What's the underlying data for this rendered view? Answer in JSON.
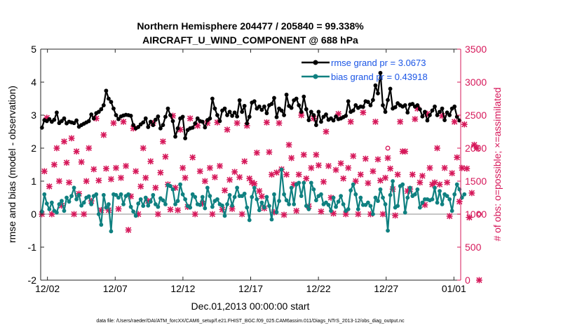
{
  "chart_data": {
    "type": "line",
    "title": "Northern Hemisphere 204477 / 205840 = 99.338%",
    "subtitle": "AIRCRAFT_U_WIND_COMPONENT @ 688 hPa",
    "xlabel": "Dec.01,2013 00:00:00 start",
    "ylabel_left": "rmse and bias (model - observation)",
    "ylabel_right": "# of obs: o=possible; ×=assimilated",
    "footnote": "data file: /Users/raeder/DAI/ATM_forcXX/CAM6_setup/f.e21.FHIST_BGC.f09_025.CAM6assim.011/Diags_NTrS_2013-12/obs_diag_output.nc",
    "xlim": [
      0.5,
      31.5
    ],
    "x_ticks": [
      1,
      6,
      11,
      16,
      21,
      26,
      31
    ],
    "x_tick_labels": [
      "12/02",
      "12/07",
      "12/12",
      "12/17",
      "12/22",
      "12/27",
      "01/01"
    ],
    "ylim_left": [
      -2,
      5
    ],
    "y_ticks_left": [
      -2,
      -1,
      0,
      1,
      2,
      3,
      4,
      5
    ],
    "y_tick_labels_left": [
      "-2",
      "-1",
      "0",
      "1",
      "2",
      "3",
      "4",
      "5"
    ],
    "ylim_right": [
      0,
      3500
    ],
    "y_ticks_right": [
      0,
      500,
      1000,
      1500,
      2000,
      2500,
      3000,
      3500
    ],
    "y_tick_labels_right": [
      "0",
      "500",
      "1000",
      "1500",
      "2000",
      "2500",
      "3000",
      "3500"
    ],
    "legend": [
      "rmse grand pr = 3.0673",
      "bias grand pr = 0.43918"
    ],
    "legend_position": "top-right",
    "colors": {
      "rmse": "#000000",
      "bias": "#0f8080",
      "obs": "#d6185a",
      "zero_line": "#b3b3b3",
      "right_axis": "#d6185a"
    },
    "series": [
      {
        "name": "rmse",
        "values": [
          2.62,
          2.85,
          2.82,
          2.88,
          2.8,
          2.86,
          3.08,
          2.76,
          2.82,
          2.9,
          2.75,
          2.8,
          2.78,
          2.76,
          2.84,
          2.65,
          2.7,
          2.74,
          2.78,
          2.82,
          3.02,
          2.9,
          3.06,
          3.1,
          3.18,
          3.3,
          3.74,
          3.5,
          3.4,
          3.2,
          3.0,
          2.88,
          2.96,
          2.99,
          3.01,
          3.0,
          2.98,
          2.7,
          2.6,
          2.64,
          2.72,
          2.78,
          2.9,
          2.64,
          2.8,
          2.7,
          2.86,
          2.96,
          2.6,
          2.7,
          2.95,
          3.2,
          3.0,
          2.82,
          2.35,
          2.6,
          2.9,
          2.95,
          2.3,
          2.55,
          2.6,
          2.62,
          2.75,
          2.9,
          2.82,
          2.8,
          2.63,
          2.85,
          2.9,
          3.5,
          3.2,
          3.0,
          2.82,
          3.14,
          3.2,
          3.0,
          3.1,
          2.98,
          3.08,
          2.96,
          3.45,
          3.1,
          3.28,
          2.75,
          2.95,
          3.38,
          3.42,
          3.2,
          3.26,
          3.16,
          3.26,
          3.06,
          3.3,
          3.34,
          3.52,
          2.94,
          3.2,
          3.14,
          3.0,
          3.62,
          3.28,
          3.22,
          3.45,
          3.5,
          3.3,
          3.1,
          3.56,
          3.18,
          2.85,
          3.1,
          3.0,
          2.7,
          3.1,
          2.8,
          2.95,
          3.02,
          2.86,
          2.9,
          2.84,
          2.96,
          2.88,
          2.9,
          2.94,
          2.98,
          3.42,
          3.1,
          3.14,
          3.3,
          3.22,
          3.26,
          3.25,
          3.42,
          3.4,
          3.3,
          3.46,
          3.9,
          3.66,
          4.28,
          3.3,
          3.1,
          3.46,
          3.8,
          3.2,
          3.24,
          3.36,
          3.3,
          3.26,
          3.3,
          3.08,
          3.32,
          3.34,
          3.26,
          3.3,
          3.18,
          2.96,
          3.1,
          2.84,
          3.0,
          3.14,
          3.26,
          3.0,
          3.1,
          3.2,
          2.85,
          3.08,
          3.0,
          3.2,
          3.26,
          2.95,
          2.84
        ]
      },
      {
        "name": "bias",
        "values": [
          0.08,
          0.6,
          0.32,
          0.15,
          0.35,
          0.1,
          0.05,
          0.3,
          0.4,
          0.1,
          0.5,
          0.38,
          0.55,
          0.8,
          0.45,
          0.58,
          0.26,
          0.35,
          0.5,
          0.54,
          0.3,
          0.55,
          0.6,
          0.0,
          -0.32,
          0.58,
          0.2,
          0.3,
          -0.52,
          0.6,
          0.58,
          0.5,
          0.6,
          0.3,
          0.55,
          0.6,
          0.22,
          0.08,
          -0.05,
          0.32,
          0.45,
          0.25,
          0.5,
          0.26,
          0.38,
          0.58,
          0.3,
          0.22,
          0.48,
          0.42,
          0.3,
          0.88,
          0.85,
          0.75,
          0.3,
          0.4,
          0.9,
          0.6,
          0.45,
          0.25,
          0.2,
          0.6,
          0.52,
          0.3,
          0.28,
          0.52,
          0.18,
          0.8,
          0.55,
          0.22,
          0.4,
          0.45,
          0.3,
          0.26,
          -0.05,
          0.3,
          0.58,
          0.26,
          0.52,
          0.8,
          0.55,
          0.55,
          0.62,
          0.2,
          -0.18,
          0.52,
          0.8,
          0.45,
          0.12,
          0.35,
          0.2,
          0.52,
          0.25,
          -0.16,
          0.6,
          0.06,
          0.4,
          1.35,
          0.6,
          0.42,
          0.3,
          0.8,
          0.3,
          0.9,
          0.95,
          0.55,
          0.95,
          0.25,
          0.15,
          0.95,
          0.75,
          0.42,
          0.55,
          0.6,
          0.3,
          0.35,
          0.28,
          0.1,
          0.5,
          0.22,
          0.38,
          0.55,
          0.3,
          0.1,
          0.15,
          0.72,
          0.9,
          0.6,
          0.15,
          0.5,
          0.28,
          0.28,
          0.35,
          0.25,
          0.0,
          0.5,
          0.4,
          0.75,
          0.5,
          0.3,
          -0.5,
          0.58,
          1.0,
          0.2,
          0.25,
          0.85,
          0.9,
          0.05,
          0.5,
          0.8,
          0.55,
          0.6,
          0.75,
          0.2,
          0.35,
          0.45,
          0.45,
          0.42,
          0.45,
          0.8,
          0.35,
          0.7,
          0.3,
          0.6,
          0.55,
          0.45,
          0.1,
          0.6,
          0.9,
          0.75,
          0.5,
          0.6
        ]
      },
      {
        "name": "obs_possible",
        "values": [
          1000,
          1650,
          2460,
          1420,
          1000,
          1750,
          2000,
          1500,
          1130,
          2100,
          1780,
          1480,
          2150,
          1000,
          1950,
          1310,
          1790,
          1000,
          1500,
          2000,
          1200,
          1680,
          2450,
          1510,
          1060,
          2200,
          1690,
          1060,
          1530,
          2380,
          1700,
          1080,
          1550,
          2400,
          1730,
          760,
          1270,
          2300,
          1650,
          1000,
          1420,
          2000,
          1550,
          1200,
          1800,
          2380,
          1400,
          1000,
          1630,
          2100,
          1870,
          1450,
          1070,
          2490,
          1400,
          1060,
          2280,
          1700,
          1550,
          1110,
          2450,
          1860,
          1000,
          2340,
          1650,
          1160,
          1500,
          2380,
          1700,
          1000,
          1560,
          2390,
          1730,
          1070,
          1360,
          2280,
          1520,
          1080,
          1640,
          2380,
          1560,
          1000,
          1800,
          2340,
          1540,
          1480,
          1460,
          1930,
          1350,
          1270,
          1090,
          2390,
          1940,
          1600,
          1030,
          1630,
          2380,
          1680,
          990,
          1600,
          2050,
          1850,
          1450,
          1050,
          1600,
          2500,
          1900,
          1540,
          1120,
          1700,
          2450,
          1900,
          1740,
          1040,
          1490,
          2250,
          1730,
          1250,
          1010,
          1670,
          2520,
          1770,
          1540,
          1000,
          1700,
          2400,
          1880,
          1500,
          1000,
          1600,
          2540,
          1840,
          1470,
          1000,
          1650,
          2400,
          1830,
          1510,
          1000,
          1550,
          2000,
          1690,
          1380,
          980,
          1600,
          2400,
          1950,
          1950,
          1350,
          1380,
          1600,
          2440,
          2600,
          1480,
          1580,
          1140,
          2520,
          1700,
          1450,
          1480,
          2000,
          1450,
          2490,
          1700,
          1480,
          970,
          1620,
          2400,
          1860,
          1190,
          1700,
          2360,
          1690,
          950,
          1320,
          2050,
          2000,
          1000
        ]
      },
      {
        "name": "obs_assimilated",
        "values": [
          1000,
          1650,
          2460,
          1420,
          1000,
          1750,
          2000,
          1500,
          1130,
          2100,
          1780,
          1480,
          2150,
          1000,
          1950,
          1310,
          1790,
          1000,
          1500,
          2000,
          1200,
          1680,
          2450,
          1510,
          1060,
          2200,
          1690,
          1060,
          1530,
          2380,
          1700,
          1080,
          1550,
          2400,
          1730,
          760,
          1270,
          2300,
          1650,
          1000,
          1420,
          2000,
          1550,
          1200,
          1800,
          2380,
          1400,
          1000,
          1630,
          2100,
          1870,
          1450,
          1070,
          2490,
          1400,
          1060,
          2280,
          1700,
          1550,
          1110,
          2450,
          1860,
          1000,
          2340,
          1650,
          1160,
          1500,
          2380,
          1700,
          1000,
          1560,
          2390,
          1730,
          1070,
          1360,
          2280,
          1520,
          1080,
          1640,
          2380,
          1560,
          1000,
          1800,
          2340,
          1540,
          1480,
          1460,
          1930,
          1350,
          1270,
          1090,
          2390,
          1940,
          1600,
          1030,
          1630,
          2380,
          1680,
          990,
          1600,
          2050,
          1850,
          1450,
          1050,
          1600,
          2500,
          1900,
          1540,
          1120,
          1700,
          2450,
          1900,
          1740,
          1040,
          1490,
          2250,
          1730,
          1250,
          1010,
          1670,
          2520,
          1770,
          1540,
          1000,
          1700,
          2400,
          1880,
          1500,
          1000,
          1600,
          2540,
          1840,
          1470,
          1000,
          1650,
          2400,
          1830,
          1510,
          1000,
          1550,
          1850,
          1690,
          1380,
          980,
          1600,
          2400,
          1950,
          1950,
          1350,
          1380,
          1600,
          2440,
          2600,
          1480,
          1580,
          1140,
          2520,
          1700,
          1450,
          1480,
          2000,
          1450,
          2490,
          1700,
          1480,
          970,
          1620,
          2400,
          1860,
          1190,
          1700,
          2360,
          1690,
          950,
          1320,
          2050,
          2000,
          0
        ]
      }
    ]
  }
}
